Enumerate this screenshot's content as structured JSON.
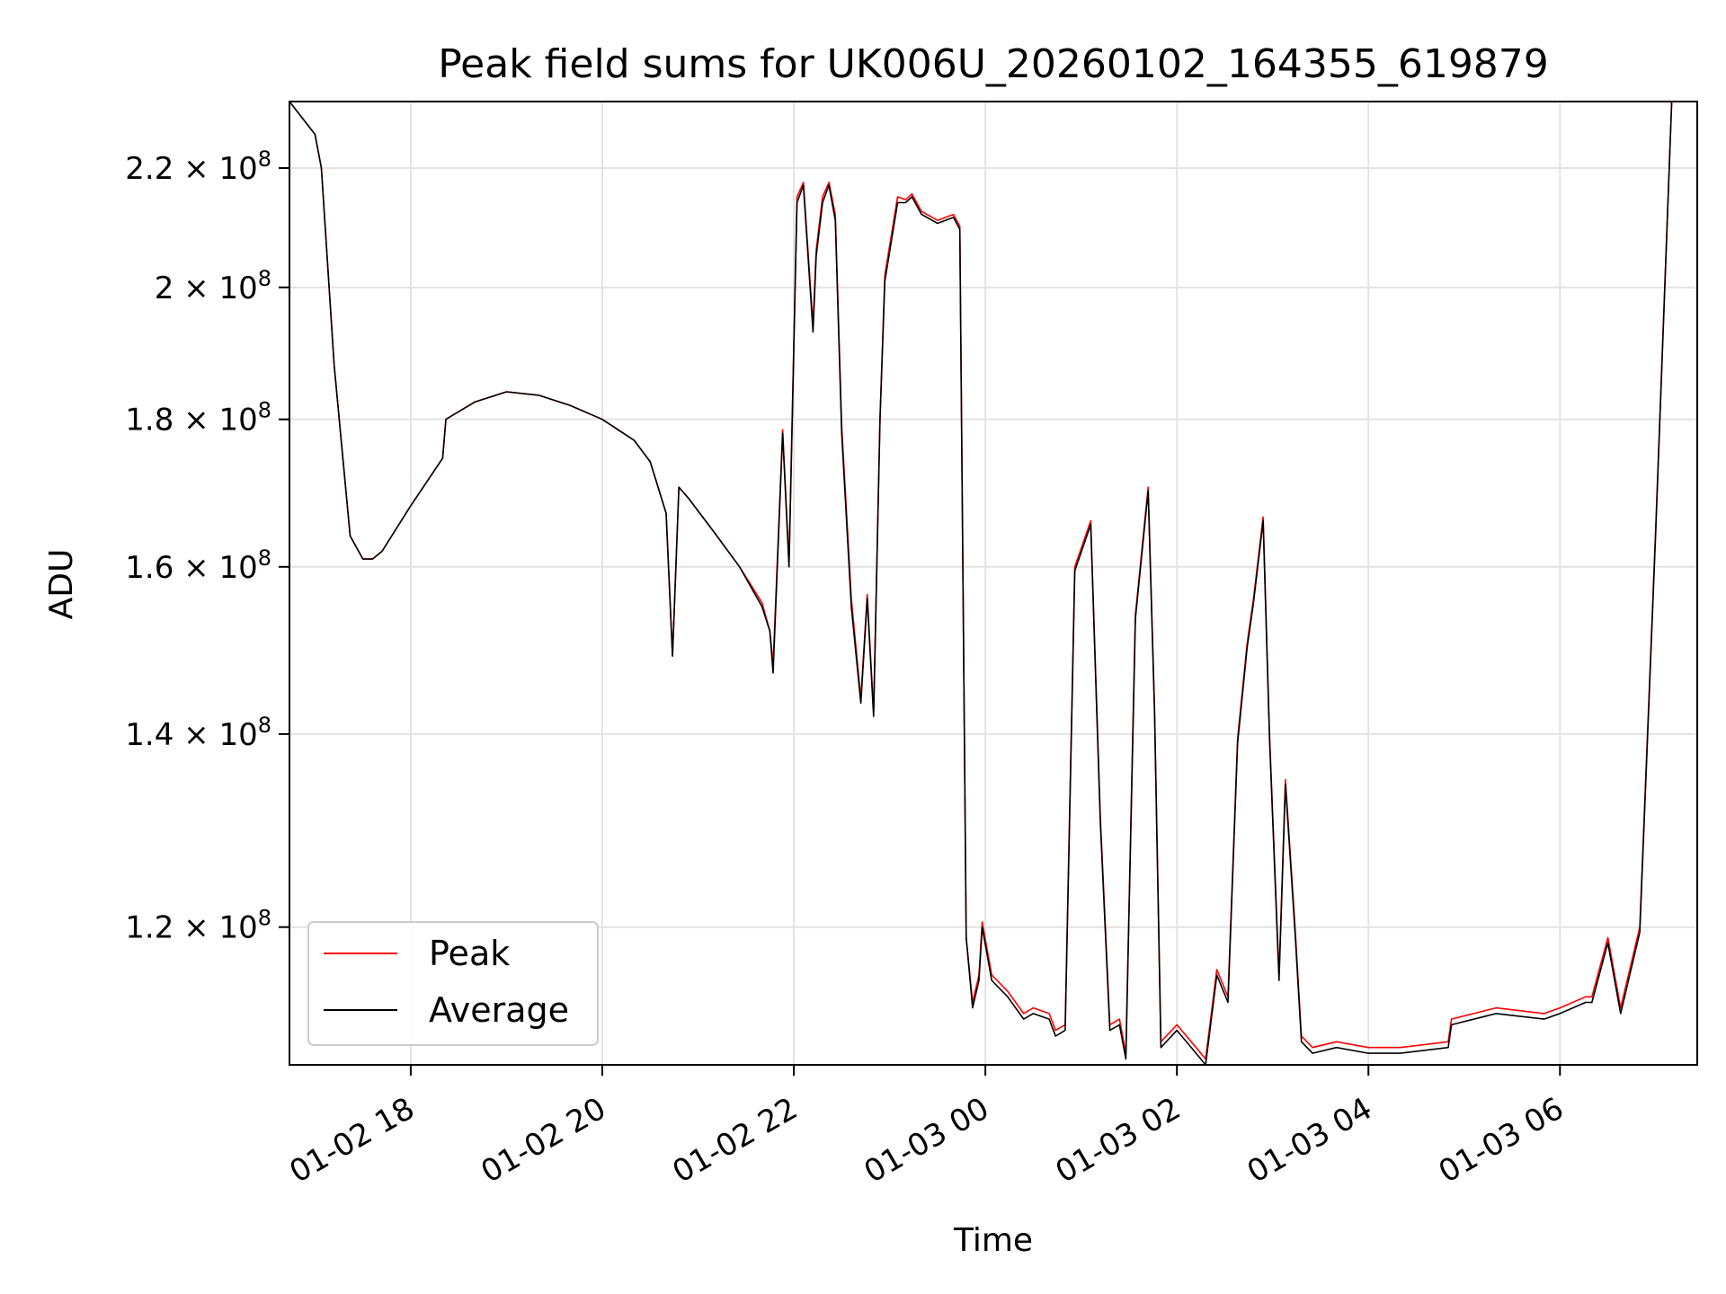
{
  "chart_data": {
    "type": "line",
    "title": "Peak field sums for UK006U_20260102_164355_619879",
    "xlabel": "Time",
    "ylabel": "ADU",
    "x_range": [
      "2026-01-02T16:44",
      "2026-01-03T07:26"
    ],
    "ylim": [
      107500000.0,
      232000000.0
    ],
    "yscale": "log",
    "grid": true,
    "legend_placement": "lower-left",
    "x_ticks": [
      "01-02 18",
      "01-02 20",
      "01-02 22",
      "01-03 00",
      "01-03 02",
      "01-03 04",
      "01-03 06"
    ],
    "x_tick_times": [
      "2026-01-02T18:00",
      "2026-01-02T20:00",
      "2026-01-02T22:00",
      "2026-01-03T00:00",
      "2026-01-03T02:00",
      "2026-01-03T04:00",
      "2026-01-03T06:00"
    ],
    "y_ticks": [
      {
        "value": 120000000.0,
        "mantissa": "1.2",
        "exponent": "8"
      },
      {
        "value": 140000000.0,
        "mantissa": "1.4",
        "exponent": "8"
      },
      {
        "value": 160000000.0,
        "mantissa": "1.6",
        "exponent": "8"
      },
      {
        "value": 180000000.0,
        "mantissa": "1.8",
        "exponent": "8"
      },
      {
        "value": 200000000.0,
        "mantissa": "2",
        "exponent": "8"
      },
      {
        "value": 220000000.0,
        "mantissa": "2.2",
        "exponent": "8"
      }
    ],
    "series": [
      {
        "name": "Peak",
        "color": "#ff0000"
      },
      {
        "name": "Average",
        "color": "#000000"
      }
    ],
    "x": [
      "01-02 16:44",
      "01-02 17:00",
      "01-02 17:04",
      "01-02 17:12",
      "01-02 17:22",
      "01-02 17:30",
      "01-02 17:36",
      "01-02 17:42",
      "01-02 18:00",
      "01-02 18:20",
      "01-02 18:22",
      "01-02 18:40",
      "01-02 19:00",
      "01-02 19:20",
      "01-02 19:40",
      "01-02 20:00",
      "01-02 20:20",
      "01-02 20:30",
      "01-02 20:40",
      "01-02 20:44",
      "01-02 20:48",
      "01-02 20:54",
      "01-02 21:10",
      "01-02 21:26",
      "01-02 21:40",
      "01-02 21:45",
      "01-02 21:47",
      "01-02 21:53",
      "01-02 21:57",
      "01-02 22:02",
      "01-02 22:06",
      "01-02 22:12",
      "01-02 22:14",
      "01-02 22:18",
      "01-02 22:22",
      "01-02 22:26",
      "01-02 22:30",
      "01-02 22:36",
      "01-02 22:42",
      "01-02 22:46",
      "01-02 22:50",
      "01-02 22:54",
      "01-02 22:57",
      "01-02 23:05",
      "01-02 23:10",
      "01-02 23:14",
      "01-02 23:20",
      "01-02 23:30",
      "01-02 23:40",
      "01-02 23:44",
      "01-02 23:48",
      "01-02 23:52",
      "01-02 23:56",
      "01-02 23:58",
      "01-03 00:04",
      "01-03 00:14",
      "01-03 00:24",
      "01-03 00:30",
      "01-03 00:40",
      "01-03 00:44",
      "01-03 00:50",
      "01-03 00:56",
      "01-03 01:06",
      "01-03 01:12",
      "01-03 01:18",
      "01-03 01:24",
      "01-03 01:28",
      "01-03 01:34",
      "01-03 01:42",
      "01-03 01:46",
      "01-03 01:50",
      "01-03 02:00",
      "01-03 02:12",
      "01-03 02:18",
      "01-03 02:25",
      "01-03 02:32",
      "01-03 02:38",
      "01-03 02:44",
      "01-03 02:48",
      "01-03 02:54",
      "01-03 02:58",
      "01-03 03:04",
      "01-03 03:08",
      "01-03 03:14",
      "01-03 03:18",
      "01-03 03:25",
      "01-03 03:40",
      "01-03 04:00",
      "01-03 04:20",
      "01-03 04:50",
      "01-03 04:52",
      "01-03 05:20",
      "01-03 05:50",
      "01-03 06:00",
      "01-03 06:16",
      "01-03 06:20",
      "01-03 06:30",
      "01-03 06:38",
      "01-03 06:50",
      "01-03 07:00",
      "01-03 07:10",
      "01-03 07:26"
    ],
    "peak": [
      232000000.0,
      226000000.0,
      220000000.0,
      188000000.0,
      164000000.0,
      161000000.0,
      161000000.0,
      162000000.0,
      168000000.0,
      174500000.0,
      180000000.0,
      182500000.0,
      184000000.0,
      183500000.0,
      182000000.0,
      180000000.0,
      177000000.0,
      174000000.0,
      167000000.0,
      149000000.0,
      170500000.0,
      169000000.0,
      164500000.0,
      160000000.0,
      155500000.0,
      152000000.0,
      148000000.0,
      178500000.0,
      160500000.0,
      215000000.0,
      217500000.0,
      194000000.0,
      206000000.0,
      215000000.0,
      217500000.0,
      212000000.0,
      179000000.0,
      156000000.0,
      144000000.0,
      156500000.0,
      142500000.0,
      180000000.0,
      202000000.0,
      215000000.0,
      214500000.0,
      215500000.0,
      212500000.0,
      211000000.0,
      212000000.0,
      210000000.0,
      119000000.0,
      113000000.0,
      115500000.0,
      120500000.0,
      115500000.0,
      114000000.0,
      112000000.0,
      112500000.0,
      112000000.0,
      110500000.0,
      111000000.0,
      160000000.0,
      166000000.0,
      131000000.0,
      111000000.0,
      111500000.0,
      108500000.0,
      154000000.0,
      170500000.0,
      143000000.0,
      109500000.0,
      111000000.0,
      109000000.0,
      108000000.0,
      116000000.0,
      113500000.0,
      139500000.0,
      150500000.0,
      156000000.0,
      166500000.0,
      140000000.0,
      115500000.0,
      135000000.0,
      120000000.0,
      110000000.0,
      109000000.0,
      109500000.0,
      109000000.0,
      109000000.0,
      109500000.0,
      111500000.0,
      112500000.0,
      112000000.0,
      112500000.0,
      113500000.0,
      113500000.0,
      119000000.0,
      112500000.0,
      120000000.0,
      165000000.0,
      232000000.0,
      232000000.0
    ],
    "average": [
      232000000.0,
      226000000.0,
      220000000.0,
      188000000.0,
      164000000.0,
      161000000.0,
      161000000.0,
      162000000.0,
      168000000.0,
      174500000.0,
      180000000.0,
      182500000.0,
      184000000.0,
      183500000.0,
      182000000.0,
      180000000.0,
      177000000.0,
      174000000.0,
      167000000.0,
      149000000.0,
      170500000.0,
      169000000.0,
      164500000.0,
      160000000.0,
      155000000.0,
      152000000.0,
      147000000.0,
      178000000.0,
      160000000.0,
      214000000.0,
      217000000.0,
      193000000.0,
      205000000.0,
      214000000.0,
      217000000.0,
      211000000.0,
      178000000.0,
      155000000.0,
      143500000.0,
      156000000.0,
      142000000.0,
      180000000.0,
      201000000.0,
      214000000.0,
      214000000.0,
      215000000.0,
      212000000.0,
      210500000.0,
      211500000.0,
      209500000.0,
      119000000.0,
      112500000.0,
      115000000.0,
      120000000.0,
      115000000.0,
      113500000.0,
      111500000.0,
      112000000.0,
      111500000.0,
      110000000.0,
      110500000.0,
      159500000.0,
      165500000.0,
      130500000.0,
      110500000.0,
      111000000.0,
      108000000.0,
      153500000.0,
      170000000.0,
      142500000.0,
      109000000.0,
      110500000.0,
      108500000.0,
      107500000.0,
      115500000.0,
      113000000.0,
      139000000.0,
      150000000.0,
      155500000.0,
      166000000.0,
      139500000.0,
      115000000.0,
      134500000.0,
      119500000.0,
      109500000.0,
      108500000.0,
      109000000.0,
      108500000.0,
      108500000.0,
      109000000.0,
      111000000.0,
      112000000.0,
      111500000.0,
      112000000.0,
      113000000.0,
      113000000.0,
      118500000.0,
      112000000.0,
      119500000.0,
      164500000.0,
      232000000.0,
      232000000.0
    ]
  }
}
